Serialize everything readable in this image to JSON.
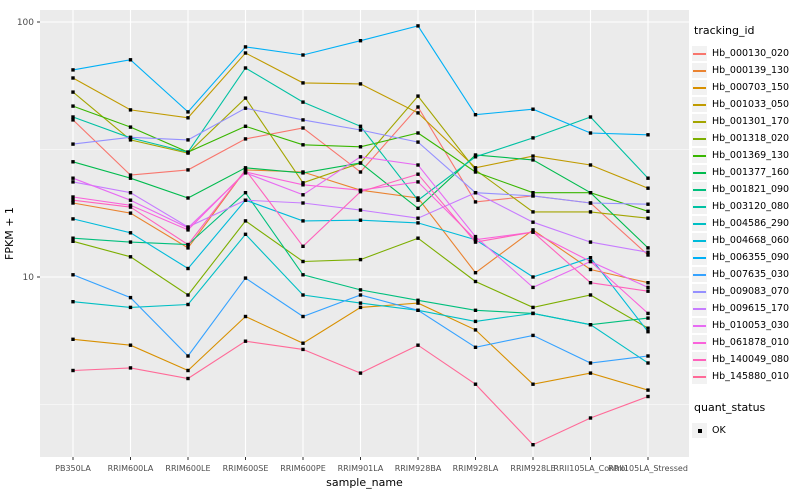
{
  "legend": {
    "tracking_title": "tracking_id",
    "quant_title": "quant_status",
    "quant_items": [
      {
        "label": "OK",
        "marker": "black-square"
      }
    ],
    "key_background": "#F2F2F2"
  },
  "chart_data": {
    "type": "line",
    "title": "",
    "xlabel": "sample_name",
    "ylabel": "FPKM + 1",
    "y_scale": "log10",
    "y_ticks": [
      10,
      100
    ],
    "y_minor_gridlines": [
      3.162,
      31.623
    ],
    "ylim": [
      1.97,
      111
    ],
    "grid": "on",
    "legend_position": "right",
    "panel_color": "#EBEBEB",
    "grid_color": "#FFFFFF",
    "tick_text_color": "#4D4D4D",
    "point_color": "#000000",
    "point_shape": "square",
    "categories": [
      "PB350LA",
      "RRIM600LA",
      "RRIM600LE",
      "RRIM600SE",
      "RRIM600PE",
      "RRIM901LA",
      "RRIM928BA",
      "RRIM928LA",
      "RRIM928LE",
      "RRII105LA_Control",
      "RRII105LA_Stressed"
    ],
    "series": [
      {
        "name": "Hb_000130_020",
        "color": "#F8766D",
        "values": [
          41.3,
          25.1,
          26.3,
          34.8,
          38.4,
          25.8,
          46.4,
          19.7,
          20.8,
          19.5,
          12.2
        ]
      },
      {
        "name": "Hb_000139_130",
        "color": "#EA8331",
        "values": [
          19.5,
          17.8,
          13.0,
          26.3,
          25.8,
          21.9,
          20.4,
          10.4,
          15.3,
          10.7,
          9.5
        ]
      },
      {
        "name": "Hb_000703_150",
        "color": "#D89000",
        "values": [
          5.7,
          5.4,
          4.3,
          7.0,
          5.5,
          7.6,
          7.9,
          6.2,
          3.8,
          4.2,
          3.6
        ]
      },
      {
        "name": "Hb_001033_050",
        "color": "#C09B00",
        "values": [
          60.3,
          45.2,
          42.1,
          75.6,
          57.7,
          57.2,
          44.0,
          26.8,
          29.8,
          27.5,
          22.3
        ]
      },
      {
        "name": "Hb_001301_170",
        "color": "#A3A500",
        "values": [
          53.1,
          34.5,
          30.6,
          50.3,
          23.4,
          28.0,
          51.2,
          26.3,
          18.0,
          18.0,
          17.0
        ]
      },
      {
        "name": "Hb_001318_020",
        "color": "#7CAE00",
        "values": [
          13.8,
          12.0,
          8.5,
          16.6,
          11.5,
          11.7,
          14.2,
          9.6,
          7.6,
          8.5,
          6.3
        ]
      },
      {
        "name": "Hb_001369_130",
        "color": "#39B600",
        "values": [
          46.8,
          38.7,
          30.9,
          39.0,
          33.0,
          32.4,
          36.7,
          25.8,
          21.4,
          21.4,
          18.1
        ]
      },
      {
        "name": "Hb_001377_160",
        "color": "#00BB4E",
        "values": [
          28.3,
          24.4,
          20.4,
          26.8,
          25.6,
          28.0,
          18.6,
          30.1,
          28.8,
          21.4,
          13.0
        ]
      },
      {
        "name": "Hb_001821_090",
        "color": "#00BF7D",
        "values": [
          14.2,
          13.7,
          13.4,
          21.4,
          10.2,
          8.9,
          8.1,
          7.4,
          7.2,
          6.5,
          6.9
        ]
      },
      {
        "name": "Hb_003120_080",
        "color": "#00C1A3",
        "values": [
          42.4,
          35.1,
          30.9,
          66.0,
          48.5,
          39.0,
          20.0,
          29.6,
          35.1,
          42.4,
          24.4
        ]
      },
      {
        "name": "Hb_004586_290",
        "color": "#00BFC4",
        "values": [
          8.0,
          7.6,
          7.8,
          14.7,
          8.5,
          7.9,
          7.4,
          6.7,
          7.2,
          6.5,
          4.6
        ]
      },
      {
        "name": "Hb_004668_060",
        "color": "#00BBDA",
        "values": [
          16.9,
          14.9,
          10.8,
          20.0,
          16.6,
          16.7,
          16.3,
          14.0,
          10.0,
          11.9,
          6.1
        ]
      },
      {
        "name": "Hb_006355_090",
        "color": "#00B0F6",
        "values": [
          64.9,
          71.1,
          44.4,
          79.9,
          74.2,
          84.5,
          96.5,
          43.3,
          45.5,
          36.7,
          36.1
        ]
      },
      {
        "name": "Hb_007635_030",
        "color": "#35A2FF",
        "values": [
          10.2,
          8.3,
          4.9,
          9.9,
          7.0,
          8.5,
          7.4,
          5.3,
          5.9,
          4.6,
          4.9
        ]
      },
      {
        "name": "Hb_009083_070",
        "color": "#9590FF",
        "values": [
          33.2,
          35.3,
          34.5,
          45.9,
          41.3,
          37.7,
          33.8,
          21.4,
          20.8,
          19.5,
          19.3
        ]
      },
      {
        "name": "Hb_009615_170",
        "color": "#C77CFF",
        "values": [
          23.6,
          21.4,
          15.7,
          20.0,
          19.5,
          18.3,
          17.0,
          21.4,
          16.4,
          13.7,
          12.5
        ]
      },
      {
        "name": "Hb_010053_030",
        "color": "#E76BF3",
        "values": [
          24.4,
          20.0,
          15.6,
          25.6,
          21.0,
          29.6,
          27.5,
          14.4,
          9.1,
          11.5,
          9.1
        ]
      },
      {
        "name": "Hb_061878_010",
        "color": "#FA62DB",
        "values": [
          20.6,
          19.1,
          15.3,
          25.8,
          23.0,
          21.9,
          23.6,
          14.0,
          15.0,
          11.5,
          7.2
        ]
      },
      {
        "name": "Hb_140049_080",
        "color": "#FF62BC",
        "values": [
          20.0,
          18.8,
          13.4,
          26.3,
          13.2,
          21.6,
          25.3,
          13.7,
          15.0,
          9.5,
          8.8
        ]
      },
      {
        "name": "Hb_145880_010",
        "color": "#FF6A98",
        "values": [
          4.3,
          4.4,
          4.0,
          5.6,
          5.2,
          4.2,
          5.4,
          3.8,
          2.2,
          2.8,
          3.4
        ]
      }
    ]
  }
}
